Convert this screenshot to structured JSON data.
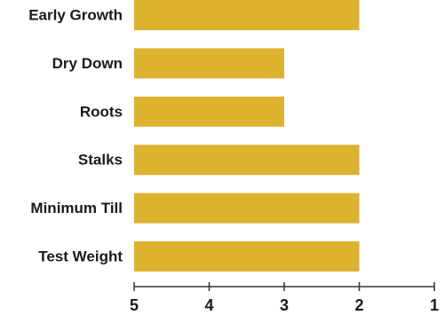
{
  "chart_data": {
    "type": "bar",
    "orientation": "horizontal",
    "categories": [
      "Early Growth",
      "Dry Down",
      "Roots",
      "Stalks",
      "Minimum Till",
      "Test Weight"
    ],
    "values": [
      2,
      3,
      3,
      2,
      2,
      2
    ],
    "xlim": [
      5,
      1
    ],
    "x_axis_reversed": true,
    "bar_origin": 5,
    "xticks": [
      5,
      4,
      3,
      2,
      1
    ],
    "xtick_labels": [
      "5",
      "4",
      "3",
      "2",
      "1"
    ],
    "title": "",
    "xlabel": "",
    "ylabel": "",
    "grid": false,
    "legend": "none",
    "bar_color": "#DDB22E",
    "axis_color": "#333333",
    "text_color": "#1a1a1a"
  }
}
